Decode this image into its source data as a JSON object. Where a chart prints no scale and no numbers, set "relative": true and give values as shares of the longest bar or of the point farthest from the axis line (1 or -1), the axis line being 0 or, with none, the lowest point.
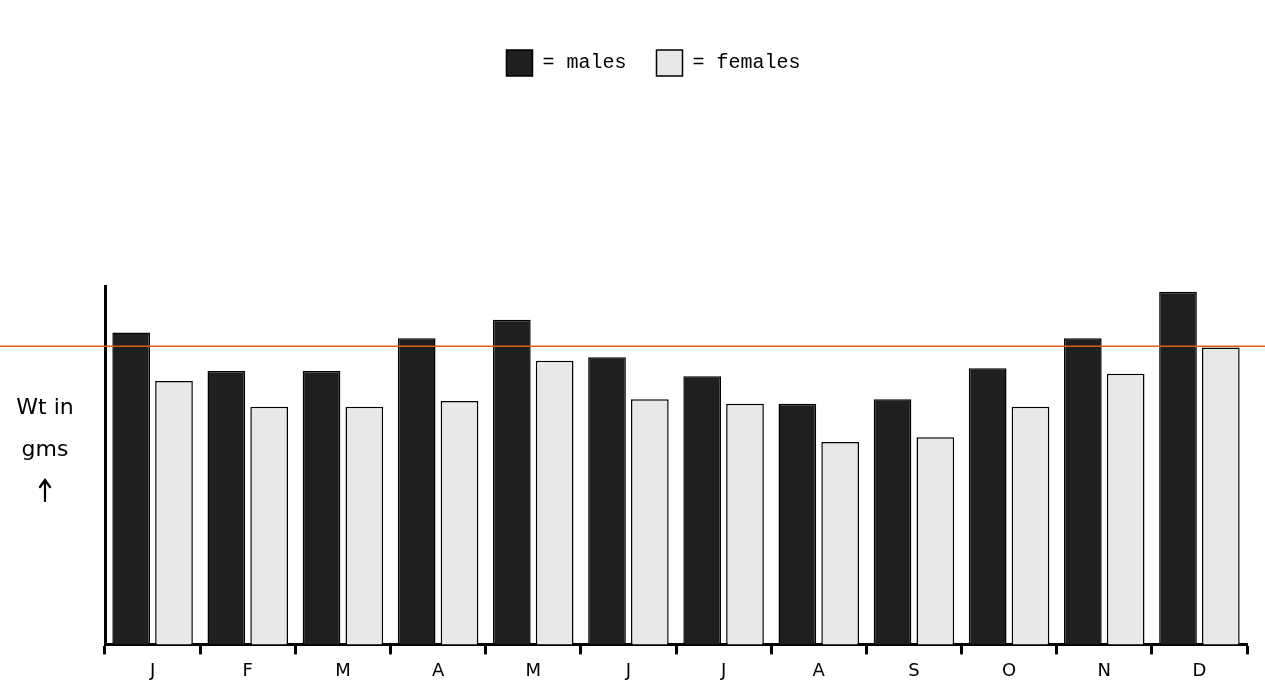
{
  "chart_data": {
    "type": "bar",
    "relative": true,
    "annotations": [
      "Wt in gms"
    ],
    "categories": [
      "J",
      "F",
      "M",
      "A",
      "M",
      "J",
      "J",
      "A",
      "S",
      "O",
      "N",
      "D"
    ],
    "series": [
      {
        "name": "= males",
        "color": "#1f1f1f",
        "values": [
          0.884,
          0.775,
          0.775,
          0.868,
          0.92,
          0.814,
          0.76,
          0.682,
          0.695,
          0.783,
          0.868,
          1
        ]
      },
      {
        "name": "= females",
        "color": "#e8e8e8",
        "values": [
          0.747,
          0.674,
          0.674,
          0.69,
          0.804,
          0.695,
          0.682,
          0.574,
          0.587,
          0.674,
          0.767,
          0.842
        ]
      }
    ],
    "ref_lines": [
      {
        "axis": "y",
        "value": 0.845,
        "color": "#e05a1e"
      }
    ],
    "legend": "top",
    "grid": false
  }
}
